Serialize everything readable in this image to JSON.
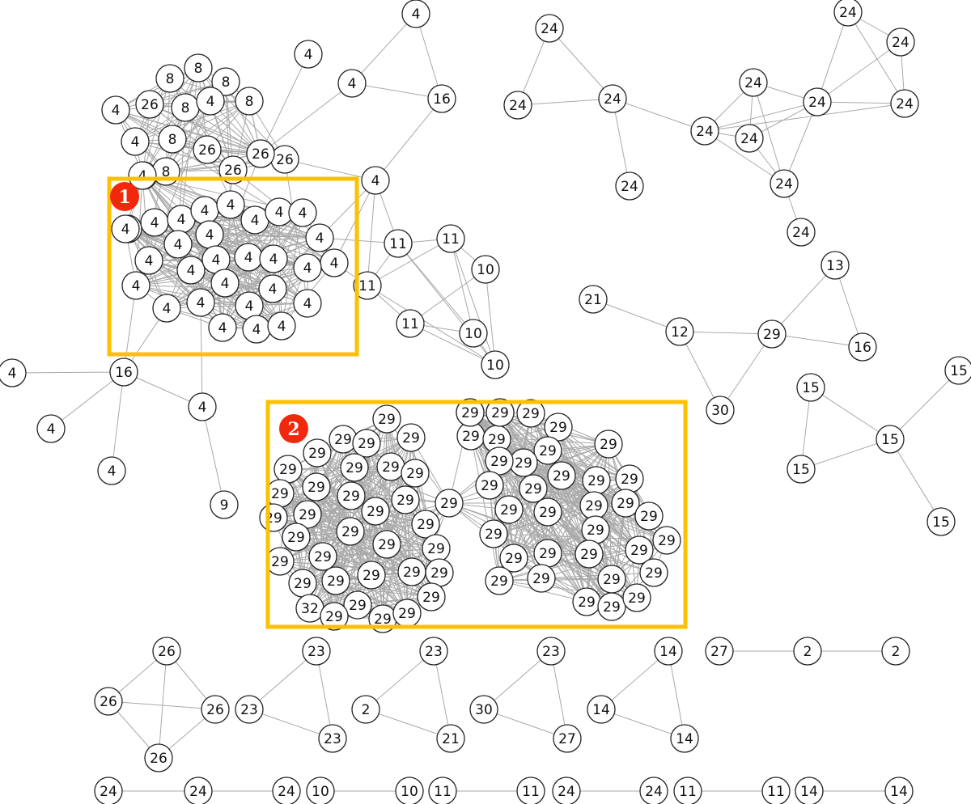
{
  "colors": {
    "highlight": "#FFC000",
    "badge": "#F2280C",
    "edge": "#A9A9A9",
    "node_stroke": "#222222"
  },
  "highlights": [
    {
      "label": "1"
    },
    {
      "label": "2"
    }
  ],
  "node_labels": {
    "top_cluster": [
      "8",
      "8",
      "8",
      "4",
      "26",
      "8",
      "4",
      "8",
      "4",
      "8",
      "26",
      "26",
      "26",
      "4",
      "8",
      "26",
      "26"
    ],
    "region_1": [
      "4",
      "4",
      "4",
      "4",
      "4",
      "4",
      "4",
      "4",
      "4",
      "4",
      "4",
      "4",
      "4",
      "4",
      "4",
      "4",
      "4",
      "4",
      "4",
      "4",
      "4",
      "4",
      "4",
      "4",
      "4",
      "4",
      "4",
      "4",
      "4",
      "4"
    ],
    "region_1_misc": [
      "4",
      "4",
      "4",
      "16",
      "4",
      "16",
      "4",
      "4",
      "4",
      "9",
      "4"
    ],
    "cluster_11": [
      "11",
      "11",
      "10",
      "11",
      "11",
      "10",
      "10"
    ],
    "triangle_24_a": [
      "24",
      "24",
      "24",
      "24"
    ],
    "cluster_24_b": [
      "24",
      "24",
      "24",
      "24",
      "24",
      "24",
      "24",
      "24"
    ],
    "group_29_small": [
      "21",
      "12",
      "29",
      "13",
      "16",
      "30"
    ],
    "star_15": [
      "15",
      "15",
      "15",
      "15",
      "15"
    ],
    "region_2_left": [
      "29",
      "29",
      "29",
      "29",
      "29",
      "29",
      "29",
      "29",
      "29",
      "29",
      "29",
      "29",
      "29",
      "29",
      "29",
      "29",
      "29",
      "29",
      "29",
      "29",
      "29",
      "29",
      "29",
      "29",
      "29",
      "29",
      "29",
      "29",
      "29",
      "32",
      "29",
      "29",
      "29",
      "29"
    ],
    "region_2_bridge": [
      "29"
    ],
    "region_2_right": [
      "29",
      "29",
      "29",
      "29",
      "29",
      "29",
      "29",
      "29",
      "29",
      "29",
      "29",
      "29",
      "29",
      "29",
      "29",
      "29",
      "29",
      "29",
      "29",
      "29",
      "29",
      "29",
      "29",
      "29",
      "29",
      "29",
      "29",
      "29",
      "29",
      "29",
      "29",
      "29",
      "29",
      "29",
      "29",
      "29"
    ],
    "bottom_groups": [
      "26",
      "26",
      "26",
      "26",
      "23",
      "23",
      "23",
      "23",
      "2",
      "21",
      "23",
      "30",
      "27",
      "14",
      "14",
      "14",
      "27",
      "2",
      "2"
    ],
    "bottom_pairs": [
      "24",
      "24",
      "24",
      "10",
      "10",
      "11",
      "11",
      "24",
      "24",
      "11",
      "11",
      "14",
      "14"
    ]
  }
}
